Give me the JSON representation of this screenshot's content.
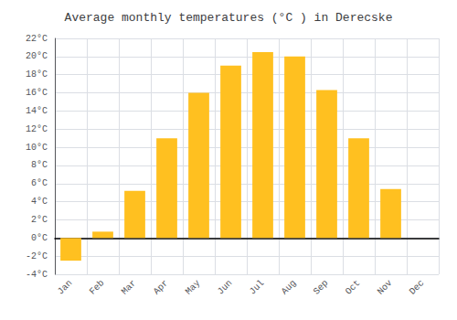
{
  "chart_data": {
    "type": "bar",
    "title": "Average monthly temperatures (°C ) in Derecske",
    "categories": [
      "Jan",
      "Feb",
      "Mar",
      "Apr",
      "May",
      "Jun",
      "Jul",
      "Aug",
      "Sep",
      "Oct",
      "Nov",
      "Dec"
    ],
    "values": [
      -2.5,
      0.7,
      5.2,
      11.0,
      16.0,
      19.0,
      20.5,
      20.0,
      16.3,
      11.0,
      5.4,
      0.0
    ],
    "color": "#FFC020",
    "ylim": [
      -4,
      22
    ],
    "yticks": [
      {
        "value": -4,
        "label": "-4°C"
      },
      {
        "value": -2,
        "label": "-2°C"
      },
      {
        "value": 0,
        "label": "0°C"
      },
      {
        "value": 2,
        "label": "2°C"
      },
      {
        "value": 4,
        "label": "4°C"
      },
      {
        "value": 6,
        "label": "6°C"
      },
      {
        "value": 8,
        "label": "8°C"
      },
      {
        "value": 10,
        "label": "10°C"
      },
      {
        "value": 12,
        "label": "12°C"
      },
      {
        "value": 14,
        "label": "14°C"
      },
      {
        "value": 16,
        "label": "16°C"
      },
      {
        "value": 18,
        "label": "18°C"
      },
      {
        "value": 20,
        "label": "20°C"
      },
      {
        "value": 22,
        "label": "22°C"
      }
    ],
    "grid": true
  }
}
